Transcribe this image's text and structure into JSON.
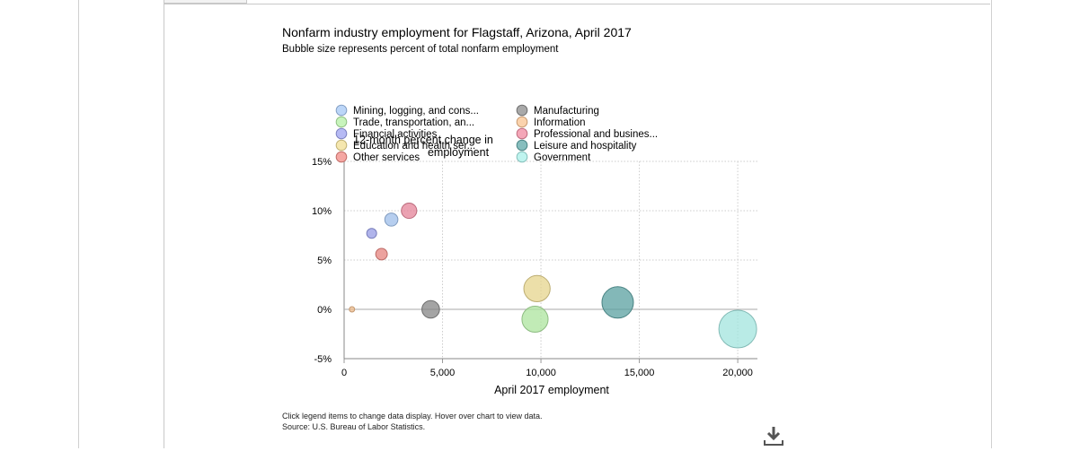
{
  "chart_data": {
    "type": "scatter",
    "title": "Nonfarm industry employment for Flagstaff, Arizona, April 2017",
    "subtitle": "Bubble size represents percent of total nonfarm employment",
    "xlabel": "April 2017 employment",
    "ylabel": "12-month percent change in employment",
    "xlim": [
      0,
      21000
    ],
    "ylim": [
      -5,
      15
    ],
    "x_ticks": [
      0,
      5000,
      10000,
      15000,
      20000
    ],
    "x_tick_labels": [
      "0",
      "5,000",
      "10,000",
      "15,000",
      "20,000"
    ],
    "y_ticks": [
      -5,
      0,
      5,
      10,
      15
    ],
    "y_tick_labels": [
      "-5%",
      "0%",
      "5%",
      "10%",
      "15%"
    ],
    "grid": true,
    "legend_position": "top",
    "series": [
      {
        "name": "Mining, logging, and cons...",
        "color": "#a6c8f5",
        "x": 2400,
        "y": 9.1,
        "size": 4.2
      },
      {
        "name": "Manufacturing",
        "color": "#8c8c8c",
        "x": 4400,
        "y": 0.0,
        "size": 7.6
      },
      {
        "name": "Trade, transportation, an...",
        "color": "#b5f0a6",
        "x": 9700,
        "y": -1.0,
        "size": 16.8
      },
      {
        "name": "Information",
        "color": "#fac491",
        "x": 400,
        "y": 0.0,
        "size": 0.7
      },
      {
        "name": "Financial activities",
        "color": "#9da3f0",
        "x": 1400,
        "y": 7.7,
        "size": 2.4
      },
      {
        "name": "Professional and busines...",
        "color": "#f08aa0",
        "x": 3300,
        "y": 10.0,
        "size": 5.8
      },
      {
        "name": "Education and health ser...",
        "color": "#f2df94",
        "x": 9800,
        "y": 2.1,
        "size": 17.0
      },
      {
        "name": "Leisure and hospitality",
        "color": "#5fa8a8",
        "x": 13900,
        "y": 0.7,
        "size": 24.3
      },
      {
        "name": "Other services",
        "color": "#f28a84",
        "x": 1900,
        "y": 5.6,
        "size": 3.3
      },
      {
        "name": "Government",
        "color": "#a9f0ea",
        "x": 20000,
        "y": -2.0,
        "size": 35.0
      }
    ]
  },
  "footer": {
    "note": "Click legend items to change data display. Hover over chart to view data.",
    "source": "Source: U.S. Bureau of Labor Statistics."
  },
  "icons": {
    "download": "download-icon"
  }
}
